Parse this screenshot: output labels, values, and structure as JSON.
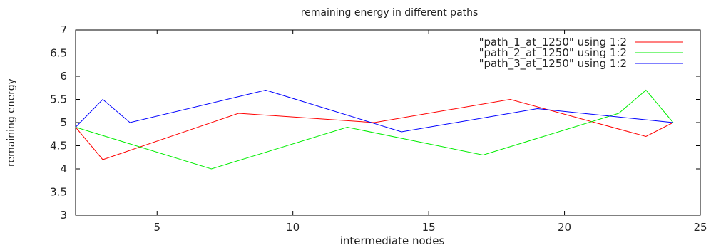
{
  "chart_data": {
    "type": "line",
    "title": "remaining energy in different paths",
    "xlabel": "intermediate nodes",
    "ylabel": "remaining energy",
    "xlim": [
      2,
      25
    ],
    "ylim": [
      3,
      7
    ],
    "xticks": [
      5,
      10,
      15,
      20,
      25
    ],
    "yticks": [
      3,
      3.5,
      4,
      4.5,
      5,
      5.5,
      6,
      6.5,
      7
    ],
    "legend_position": "top-right",
    "grid": false,
    "series": [
      {
        "name": "\"path_1_at_1250\" using 1:2",
        "color": "#ff0000",
        "x": [
          2,
          3,
          8,
          13,
          18,
          23,
          24
        ],
        "y": [
          4.9,
          4.2,
          5.2,
          5.0,
          5.5,
          4.7,
          5.0
        ]
      },
      {
        "name": "\"path_2_at_1250\" using 1:2",
        "color": "#00ee00",
        "x": [
          2,
          7,
          12,
          17,
          22,
          23,
          24
        ],
        "y": [
          4.9,
          4.0,
          4.9,
          4.3,
          5.2,
          5.7,
          5.0
        ]
      },
      {
        "name": "\"path_3_at_1250\" using 1:2",
        "color": "#0000ff",
        "x": [
          2,
          3,
          4,
          9,
          14,
          19,
          24
        ],
        "y": [
          4.9,
          5.5,
          5.0,
          5.7,
          4.8,
          5.3,
          5.0
        ]
      }
    ]
  }
}
